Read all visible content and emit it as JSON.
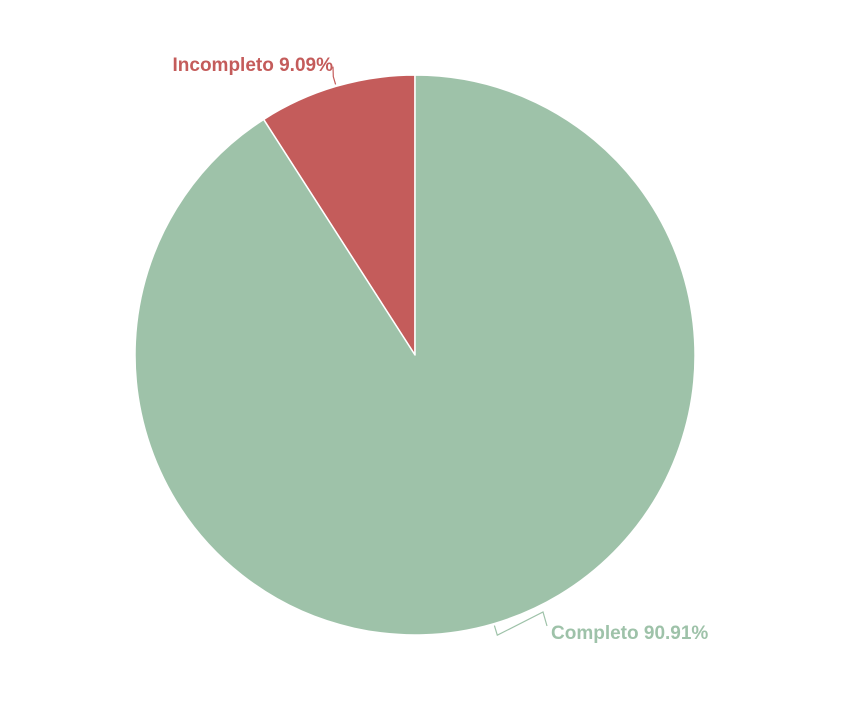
{
  "chart_data": {
    "type": "pie",
    "categories": [
      "Incompleto",
      "Completo"
    ],
    "values": [
      9.09,
      90.91
    ],
    "labels": [
      "Incompleto 9.09%",
      "Completo 90.91%"
    ],
    "colors": [
      "#c45c5b",
      "#9ec2a9"
    ],
    "start_angle": "top",
    "direction": "counter-clockwise",
    "legend": "none"
  }
}
